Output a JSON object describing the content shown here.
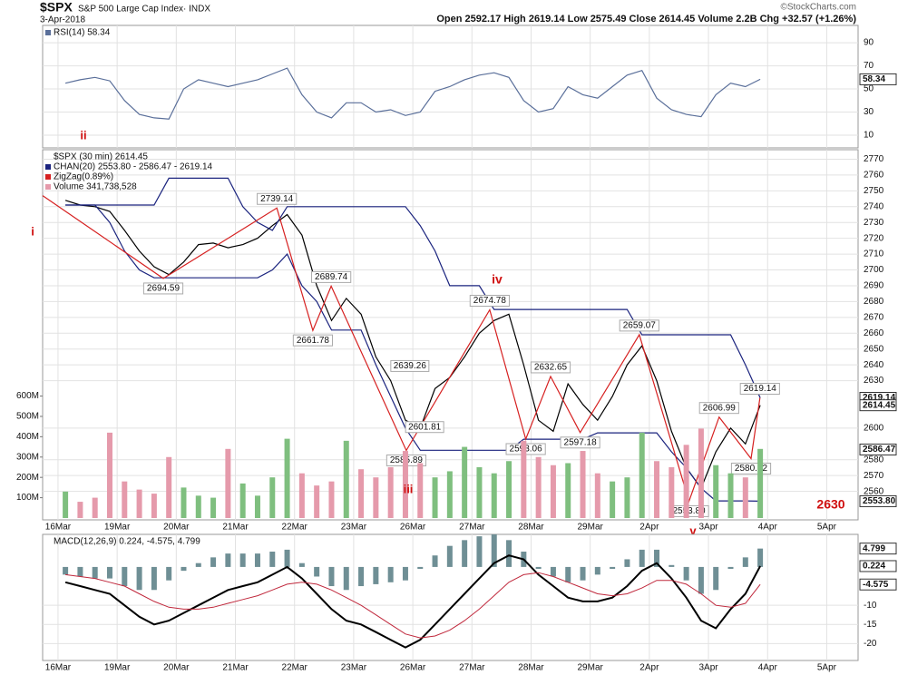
{
  "header": {
    "symbol": "$SPX",
    "name": "S&P 500 Large Cap Index· INDX",
    "date": "3-Apr-2018",
    "quote": "Open 2592.17  High 2619.14  Low 2575.49  Close 2614.45  Volume 2.2B  Chg +32.57 (+1.26%)",
    "credit": "©StockCharts.com"
  },
  "chart_data": [
    {
      "type": "line",
      "ylim": [
        -1,
        105
      ],
      "yticks": [
        10,
        30,
        50,
        70,
        90
      ],
      "last_labels": [
        58.34
      ],
      "x": [
        0.125,
        0.375,
        0.625,
        0.875,
        1.125,
        1.375,
        1.625,
        1.875,
        2.125,
        2.375,
        2.625,
        2.875,
        3.125,
        3.375,
        3.625,
        3.875,
        4.125,
        4.375,
        4.625,
        4.875,
        5.125,
        5.375,
        5.625,
        5.875,
        6.125,
        6.375,
        6.625,
        6.875,
        7.125,
        7.375,
        7.625,
        7.875,
        8.125,
        8.375,
        8.625,
        8.875,
        9.125,
        9.375,
        9.625,
        9.875,
        10.125,
        10.375,
        10.625,
        10.875,
        11.125,
        11.375,
        11.625,
        11.875
      ],
      "xlim": [
        -0.26,
        13.53
      ],
      "series": [
        {
          "name": "RSI(14) 58.34",
          "color": "#5a6f9a",
          "values": [
            55,
            58,
            60,
            57,
            40,
            28,
            25,
            24,
            50,
            58,
            55,
            52,
            55,
            58,
            63,
            68,
            45,
            30,
            25,
            38,
            38,
            30,
            32,
            27,
            30,
            48,
            52,
            58,
            62,
            64,
            60,
            40,
            30,
            33,
            52,
            45,
            42,
            52,
            62,
            66,
            42,
            32,
            28,
            26,
            45,
            55,
            52,
            58.34
          ]
        }
      ]
    },
    {
      "type": "line",
      "legend_title": "$SPX (30 min) 2614.45",
      "ylim": [
        2542,
        2776
      ],
      "yticks": [
        2560,
        2570,
        2580,
        2600,
        2630,
        2640,
        2650,
        2660,
        2670,
        2680,
        2690,
        2700,
        2710,
        2720,
        2730,
        2740,
        2750,
        2760,
        2770
      ],
      "y2lim": [
        -9,
        1812
      ],
      "y2ticks": [
        {
          "value": 100,
          "label": "100M"
        },
        {
          "value": 200,
          "label": "200M"
        },
        {
          "value": 300,
          "label": "300M"
        },
        {
          "value": 400,
          "label": "400M"
        },
        {
          "value": 500,
          "label": "500M"
        },
        {
          "value": 600,
          "label": "600M"
        }
      ],
      "xlim": [
        -0.26,
        13.53
      ],
      "xticks": [
        {
          "value": 0,
          "label": "16Mar"
        },
        {
          "value": 1,
          "label": "19Mar"
        },
        {
          "value": 2,
          "label": "20Mar"
        },
        {
          "value": 3,
          "label": "21Mar"
        },
        {
          "value": 4,
          "label": "22Mar"
        },
        {
          "value": 5,
          "label": "23Mar"
        },
        {
          "value": 6,
          "label": "26Mar"
        },
        {
          "value": 7,
          "label": "27Mar"
        },
        {
          "value": 8,
          "label": "28Mar"
        },
        {
          "value": 9,
          "label": "29Mar"
        },
        {
          "value": 10,
          "label": "2Apr"
        },
        {
          "value": 11,
          "label": "3Apr"
        },
        {
          "value": 12,
          "label": "4Apr"
        },
        {
          "value": 13,
          "label": "5Apr"
        }
      ],
      "x": [
        0.125,
        0.375,
        0.625,
        0.875,
        1.125,
        1.375,
        1.625,
        1.875,
        2.125,
        2.375,
        2.625,
        2.875,
        3.125,
        3.375,
        3.625,
        3.875,
        4.125,
        4.375,
        4.625,
        4.875,
        5.125,
        5.375,
        5.625,
        5.875,
        6.125,
        6.375,
        6.625,
        6.875,
        7.125,
        7.375,
        7.625,
        7.875,
        8.125,
        8.375,
        8.625,
        8.875,
        9.125,
        9.375,
        9.625,
        9.875,
        10.125,
        10.375,
        10.625,
        10.875,
        11.125,
        11.375,
        11.625,
        11.875
      ],
      "last_labels": [
        2619.14,
        2614.45,
        2586.47,
        {
          "value": 2553.8,
          "label": "2553.80"
        }
      ],
      "point_labels": {
        "x": [
          5.95,
          6.2
        ],
        "values": [
          2639.26,
          2601.81
        ]
      },
      "annotations": [
        "i",
        "ii",
        "iii",
        "iv",
        "v",
        "2630"
      ],
      "series": [
        {
          "name": null,
          "color": "#000000",
          "values": [
            2744,
            2741,
            2740,
            2737,
            2725,
            2712,
            2702,
            2697,
            2705,
            2716,
            2717,
            2714,
            2716,
            2720,
            2728,
            2735,
            2722,
            2690,
            2668,
            2682,
            2672,
            2645,
            2630,
            2605,
            2600,
            2625,
            2632,
            2645,
            2660,
            2668,
            2672,
            2640,
            2605,
            2598,
            2628,
            2615,
            2605,
            2620,
            2640,
            2652,
            2630,
            2598,
            2575,
            2562,
            2585,
            2600,
            2590,
            2614.45
          ]
        },
        {
          "name": "CHAN(20) 2553.80 - 2586.47 - 2619.14",
          "color": "#1a237e",
          "values": [
            2741,
            2741,
            2741,
            2741,
            2741,
            2741,
            2741,
            2758,
            2758,
            2758,
            2758,
            2758,
            2740,
            2730,
            2725,
            2740,
            2740,
            2740,
            2740,
            2740,
            2740,
            2740,
            2740,
            2740,
            2728,
            2712,
            2690,
            2690,
            2690,
            2675,
            2675,
            2675,
            2675,
            2675,
            2675,
            2675,
            2675,
            2675,
            2675,
            2659,
            2659,
            2659,
            2659,
            2659,
            2659,
            2659,
            2640,
            2619.14
          ]
        },
        {
          "name": null,
          "color": "#1a237e",
          "values": [
            2741,
            2741,
            2741,
            2730,
            2712,
            2700,
            2695,
            2695,
            2695,
            2695,
            2695,
            2695,
            2695,
            2695,
            2700,
            2710,
            2690,
            2680,
            2662,
            2662,
            2662,
            2640,
            2620,
            2600,
            2586,
            2586,
            2586,
            2586,
            2586,
            2586,
            2586,
            2593,
            2593,
            2593,
            2593,
            2593,
            2597,
            2597,
            2597,
            2597,
            2597,
            2585,
            2575,
            2562,
            2554,
            2554,
            2554,
            2553.8
          ]
        },
        {
          "name": "ZigZag(0.89%)",
          "color": "#d62020",
          "x": [
            -0.26,
            1.78,
            3.7,
            4.31,
            4.62,
            5.89,
            7.3,
            7.91,
            8.33,
            8.83,
            9.83,
            10.67,
            11.18,
            11.72,
            11.87
          ],
          "values": [
            2747,
            2694.59,
            2739.14,
            2661.78,
            2689.74,
            2585.89,
            2674.78,
            2593.06,
            2632.65,
            2597.18,
            2659.07,
            2553.8,
            2606.99,
            2580.72,
            2619.14
          ],
          "value_labels": [
            null,
            "2694.59",
            "2739.14",
            "2661.78",
            "2689.74",
            "2585.89",
            "2674.78",
            "2593.06",
            "2632.65",
            "2597.18",
            "2659.07",
            "2553.80",
            "2606.99",
            "2580.72",
            "2619.14"
          ]
        },
        {
          "name": "Volume 341,738,528",
          "type": "bar",
          "axis": "y2",
          "color": "#e59aab",
          "up_color": "#7fbf7f",
          "values": [
            130,
            80,
            100,
            420,
            180,
            140,
            120,
            300,
            150,
            110,
            100,
            340,
            170,
            110,
            200,
            390,
            220,
            160,
            180,
            380,
            240,
            200,
            250,
            330,
            270,
            200,
            230,
            350,
            250,
            220,
            280,
            380,
            300,
            260,
            270,
            330,
            220,
            180,
            200,
            420,
            280,
            250,
            360,
            440,
            260,
            220,
            200,
            340
          ]
        }
      ]
    },
    {
      "type": "line",
      "title": "MACD(12,26,9) 0.224, -4.575, 4.799",
      "ylim": [
        -24.4,
        8.5
      ],
      "yticks": [
        -20,
        -15,
        -10
      ],
      "last_labels": [
        4.799,
        0.224,
        -4.575
      ],
      "xlim": [
        -0.26,
        13.53
      ],
      "xticks": [
        {
          "value": 0,
          "label": "16Mar"
        },
        {
          "value": 1,
          "label": "19Mar"
        },
        {
          "value": 2,
          "label": "20Mar"
        },
        {
          "value": 3,
          "label": "21Mar"
        },
        {
          "value": 4,
          "label": "22Mar"
        },
        {
          "value": 5,
          "label": "23Mar"
        },
        {
          "value": 6,
          "label": "26Mar"
        },
        {
          "value": 7,
          "label": "27Mar"
        },
        {
          "value": 8,
          "label": "28Mar"
        },
        {
          "value": 9,
          "label": "29Mar"
        },
        {
          "value": 10,
          "label": "2Apr"
        },
        {
          "value": 11,
          "label": "3Apr"
        },
        {
          "value": 12,
          "label": "4Apr"
        },
        {
          "value": 13,
          "label": "5Apr"
        }
      ],
      "x": [
        0.125,
        0.375,
        0.625,
        0.875,
        1.125,
        1.375,
        1.625,
        1.875,
        2.125,
        2.375,
        2.625,
        2.875,
        3.125,
        3.375,
        3.625,
        3.875,
        4.125,
        4.375,
        4.625,
        4.875,
        5.125,
        5.375,
        5.625,
        5.875,
        6.125,
        6.375,
        6.625,
        6.875,
        7.125,
        7.375,
        7.625,
        7.875,
        8.125,
        8.375,
        8.625,
        8.875,
        9.125,
        9.375,
        9.625,
        9.875,
        10.125,
        10.375,
        10.625,
        10.875,
        11.125,
        11.375,
        11.625,
        11.875
      ],
      "series": [
        {
          "type": "bar",
          "color": "#6f8f95",
          "values": [
            -2,
            -2.5,
            -3,
            -3,
            -5,
            -6,
            -6,
            -3.5,
            -1,
            1,
            2.5,
            3.5,
            3.5,
            3.5,
            4,
            4.5,
            1,
            -2.5,
            -5,
            -6,
            -5,
            -4.5,
            -4,
            -3.5,
            -0.5,
            3,
            5.5,
            7,
            8,
            8.5,
            7,
            4,
            -0.5,
            -2.5,
            -4,
            -3.5,
            -2,
            -0.5,
            2,
            4.5,
            4.5,
            0.5,
            -3.5,
            -7,
            -6,
            -0.5,
            2.5,
            4.799
          ]
        },
        {
          "color": "#000000",
          "width": 2,
          "values": [
            -4,
            -5,
            -6,
            -7,
            -10,
            -13,
            -15,
            -14,
            -12,
            -10,
            -8,
            -6,
            -5,
            -4,
            -2,
            0,
            -3,
            -7,
            -11,
            -14,
            -15,
            -17,
            -19,
            -21,
            -19,
            -15,
            -11,
            -7,
            -3,
            1,
            3,
            2,
            -2,
            -5,
            -8,
            -9,
            -9,
            -8,
            -5,
            -1,
            1,
            -3,
            -8,
            -14,
            -16,
            -11,
            -7,
            0.224
          ]
        },
        {
          "color": "#c0283c",
          "width": 1,
          "values": [
            -2,
            -2.5,
            -3,
            -4,
            -5,
            -7,
            -9,
            -10.5,
            -11,
            -11,
            -10.5,
            -9.5,
            -8.5,
            -7.5,
            -6,
            -4.5,
            -4,
            -4.5,
            -6,
            -8,
            -10,
            -12.5,
            -15,
            -17.5,
            -18.5,
            -18,
            -16.5,
            -14,
            -11,
            -7.5,
            -4,
            -2,
            -1.5,
            -2.5,
            -4,
            -5.5,
            -7,
            -7.5,
            -7,
            -5.5,
            -3.5,
            -3.5,
            -4.5,
            -7,
            -10,
            -10.5,
            -9.5,
            -4.575
          ]
        }
      ]
    }
  ]
}
